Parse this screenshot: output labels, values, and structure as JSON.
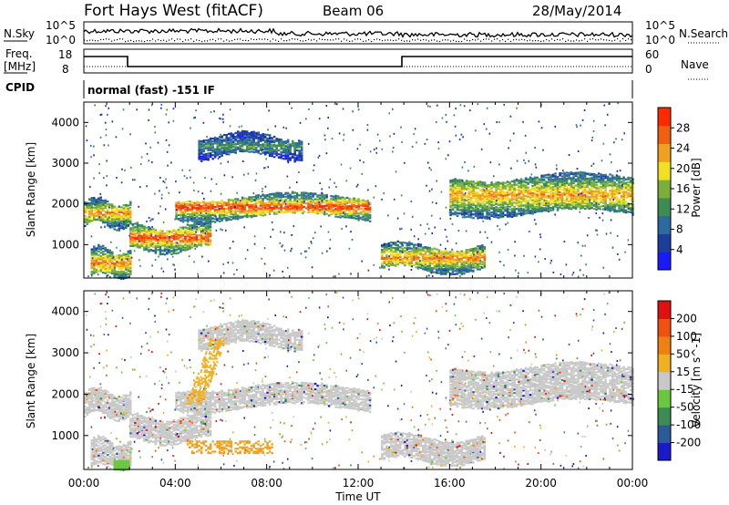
{
  "header": {
    "station": "Fort Hays West (fitACF)",
    "beam": "Beam 06",
    "date": "28/May/2014"
  },
  "strips": {
    "nsky_label": "N.Sky",
    "nsky_ticks": [
      "10^5",
      "10^0"
    ],
    "nsearch_label": "N.Search",
    "freq_label_1": "Freq.",
    "freq_label_2": "[MHz]",
    "freq_ticks": [
      "18",
      "8"
    ],
    "nave_label": "Nave",
    "nave_ticks": [
      "60",
      "0"
    ],
    "cpid_label": "CPID",
    "cpid_value": "normal (fast) -151 IF"
  },
  "chart_data": [
    {
      "type": "heatmap",
      "name": "power",
      "ylabel": "Slant Range [km]",
      "xlabel": "",
      "xlim": [
        "00:00",
        "24:00"
      ],
      "ylim": [
        180,
        4500
      ],
      "y_ticks": [
        1000,
        2000,
        3000,
        4000
      ],
      "colorbar": {
        "label": "Power [dB]",
        "ticks": [
          "4",
          "8",
          "12",
          "16",
          "20",
          "24",
          "28"
        ],
        "colors": [
          "#1a1aff",
          "#1d3d9c",
          "#2a6aa0",
          "#3d8c55",
          "#7ab03a",
          "#f0e020",
          "#f0a020",
          "#f06010",
          "#ff2a00"
        ]
      },
      "bands_note_free": [
        {
          "start": 0.0,
          "end": 2.0,
          "range": [
            1500,
            2100
          ],
          "level": 0.78
        },
        {
          "start": 0.3,
          "end": 2.0,
          "range": [
            250,
            900
          ],
          "level": 0.8
        },
        {
          "start": 2.0,
          "end": 5.5,
          "range": [
            900,
            1500
          ],
          "level": 0.9
        },
        {
          "start": 4.0,
          "end": 12.5,
          "range": [
            1700,
            2200
          ],
          "level": 0.95
        },
        {
          "start": 5.0,
          "end": 9.5,
          "range": [
            3200,
            3700
          ],
          "level": 0.4
        },
        {
          "start": 13.0,
          "end": 17.5,
          "range": [
            400,
            1000
          ],
          "level": 0.8
        },
        {
          "start": 16.0,
          "end": 24.0,
          "range": [
            1800,
            2700
          ],
          "level": 0.75
        }
      ]
    },
    {
      "type": "heatmap",
      "name": "velocity",
      "ylabel": "Slant Range [km]",
      "xlabel": "Time UT",
      "xlim": [
        "00:00",
        "24:00"
      ],
      "ylim": [
        180,
        4500
      ],
      "y_ticks": [
        1000,
        2000,
        3000,
        4000
      ],
      "x_ticks": [
        "00:00",
        "04:00",
        "08:00",
        "12:00",
        "16:00",
        "20:00",
        "00:00"
      ],
      "colorbar": {
        "label": "Velocity [m s^-1]",
        "ticks": [
          "200",
          "100",
          "50",
          "15",
          "-15",
          "-50",
          "-100",
          "-200"
        ],
        "colors": [
          "#1a1acc",
          "#2a5a9a",
          "#3d8c55",
          "#6ac840",
          "#c8c8c8",
          "#f0b020",
          "#f08010",
          "#f05010",
          "#e01010"
        ]
      }
    }
  ]
}
